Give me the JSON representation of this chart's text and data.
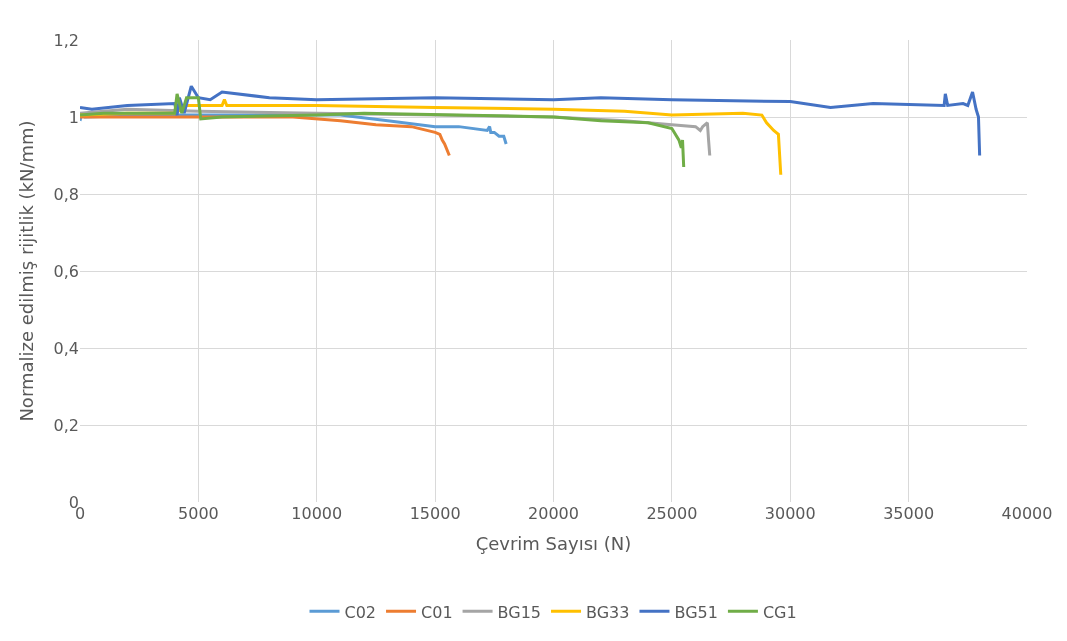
{
  "chart_data": {
    "type": "line",
    "xlabel": "Çevrim Sayısı (N)",
    "ylabel": "Normalize edilmiş rijitlik (kN/mm)",
    "xlim": [
      0,
      40000
    ],
    "xticks": [
      0,
      5000,
      10000,
      15000,
      20000,
      25000,
      30000,
      35000,
      40000
    ],
    "ylim": [
      0,
      1.2
    ],
    "yticks": [
      {
        "value": 0,
        "label": "0"
      },
      {
        "value": 0.2,
        "label": "0,2"
      },
      {
        "value": 0.4,
        "label": "0,4"
      },
      {
        "value": 0.6,
        "label": "0,6"
      },
      {
        "value": 0.8,
        "label": "0,8"
      },
      {
        "value": 1,
        "label": "1"
      },
      {
        "value": 1.2,
        "label": "1,2"
      }
    ],
    "grid": true,
    "legend": "bottom",
    "marker": "none",
    "line_style": "solid",
    "series": [
      {
        "name": "C02",
        "color": "#5b9bd5",
        "x": [
          0,
          50,
          200,
          3000,
          8000,
          11000,
          13000,
          15000,
          16000,
          17200,
          17300,
          17350,
          17500,
          17700,
          17900,
          18000
        ],
        "values": [
          0.99,
          1.005,
          1.0,
          1.005,
          1.005,
          1.005,
          0.99,
          0.975,
          0.975,
          0.965,
          0.975,
          0.96,
          0.96,
          0.95,
          0.95,
          0.93
        ]
      },
      {
        "name": "C01",
        "color": "#ed7d31",
        "x": [
          0,
          3000,
          6000,
          9000,
          11000,
          12500,
          14000,
          15000,
          15200,
          15300,
          15400,
          15600
        ],
        "values": [
          1.0,
          1.0,
          1.0,
          1.0,
          0.99,
          0.98,
          0.975,
          0.96,
          0.955,
          0.94,
          0.93,
          0.9
        ]
      },
      {
        "name": "BG15",
        "color": "#a5a5a5",
        "x": [
          0,
          2000,
          5000,
          10000,
          15000,
          20000,
          23000,
          25000,
          26000,
          26200,
          26300,
          26500,
          26550,
          26600
        ],
        "values": [
          1.01,
          1.02,
          1.015,
          1.01,
          1.005,
          1.0,
          0.99,
          0.98,
          0.975,
          0.965,
          0.975,
          0.985,
          0.94,
          0.9
        ]
      },
      {
        "name": "BG33",
        "color": "#ffc000",
        "x": [
          0,
          2000,
          4000,
          4500,
          5000,
          6000,
          6100,
          6200,
          10000,
          15000,
          20000,
          23000,
          25000,
          28000,
          28800,
          29000,
          29300,
          29400,
          29500,
          29600
        ],
        "values": [
          1.005,
          1.01,
          1.01,
          1.03,
          1.03,
          1.03,
          1.045,
          1.03,
          1.03,
          1.025,
          1.02,
          1.015,
          1.005,
          1.01,
          1.005,
          0.985,
          0.965,
          0.96,
          0.955,
          0.85
        ]
      },
      {
        "name": "BG51",
        "color": "#4472c4",
        "x": [
          0,
          500,
          2000,
          4000,
          4100,
          4200,
          4400,
          4700,
          5000,
          5500,
          6000,
          8000,
          10000,
          15000,
          20000,
          22000,
          25000,
          30000,
          31700,
          33500,
          36500,
          36550,
          36650,
          37300,
          37500,
          37700,
          37850,
          37950,
          38000
        ],
        "values": [
          1.025,
          1.02,
          1.03,
          1.035,
          1.005,
          1.05,
          1.01,
          1.08,
          1.05,
          1.045,
          1.065,
          1.05,
          1.045,
          1.05,
          1.045,
          1.05,
          1.045,
          1.04,
          1.025,
          1.035,
          1.03,
          1.06,
          1.03,
          1.035,
          1.03,
          1.065,
          1.02,
          1.0,
          0.9
        ]
      },
      {
        "name": "CG1",
        "color": "#70ad47",
        "x": [
          0,
          1000,
          4000,
          4100,
          4300,
          4500,
          5000,
          5100,
          6000,
          10000,
          12000,
          20000,
          22000,
          24000,
          25000,
          25300,
          25400,
          25450,
          25500
        ],
        "values": [
          1.005,
          1.01,
          1.01,
          1.06,
          1.01,
          1.05,
          1.05,
          0.995,
          1.0,
          1.005,
          1.01,
          1.0,
          0.99,
          0.985,
          0.97,
          0.94,
          0.92,
          0.94,
          0.87
        ]
      }
    ]
  }
}
